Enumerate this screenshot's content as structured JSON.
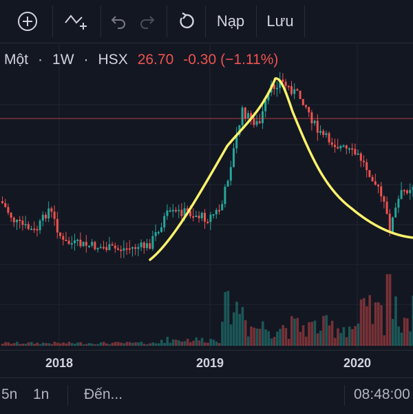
{
  "toolbar": {
    "indicators_icon": "plus-circle-icon",
    "compare_icon": "indicator-add-icon",
    "undo_icon": "undo-icon",
    "redo_icon": "redo-icon",
    "reload_icon": "reload-icon",
    "load_label": "Nạp",
    "save_label": "Lưu"
  },
  "legend": {
    "symbol": "Một",
    "interval": "1W",
    "exchange": "HSX",
    "price": "26.70",
    "change": "-0.30",
    "change_pct": "(−1.11%)"
  },
  "colors": {
    "up": "#26a69a",
    "down": "#ef5350",
    "annotation": "#ffeb3b",
    "background": "#131722"
  },
  "chart_data": {
    "type": "candlestick",
    "x_ticks": [
      "2018",
      "2019",
      "2020"
    ],
    "annotation": "hand-drawn yellow curve rising to a peak in mid-2019 and falling into 2020"
  },
  "xaxis": {
    "ticks": [
      "2018",
      "2019",
      "2020"
    ]
  },
  "bottombar": {
    "range_5y": "5n",
    "range_1y": "1n",
    "goto_label": "Đến...",
    "clock": "08:48:00"
  }
}
